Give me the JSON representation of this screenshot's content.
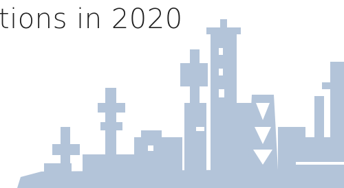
{
  "heading": "tions in 2020"
}
